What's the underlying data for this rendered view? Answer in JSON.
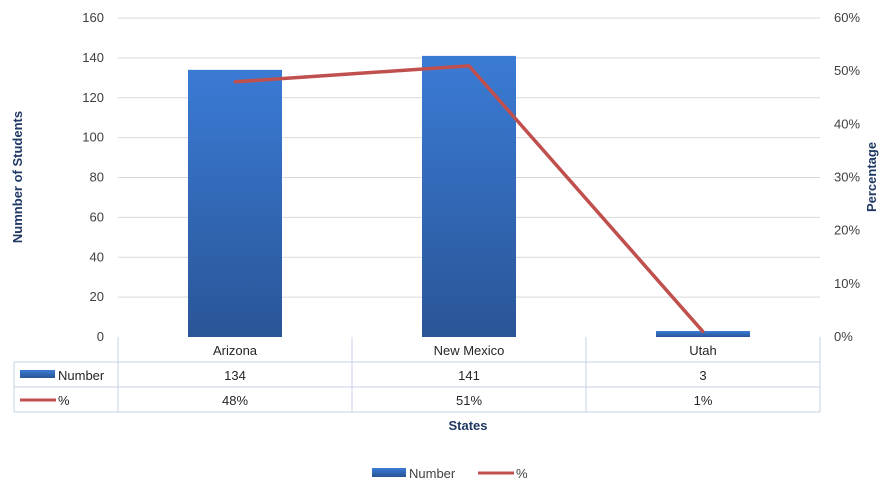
{
  "chart_data": {
    "type": "bar",
    "categories": [
      "Arizona",
      "New Mexico",
      "Utah"
    ],
    "series": [
      {
        "name": "Number",
        "type": "bar",
        "values": [
          134,
          141,
          3
        ],
        "color": "#3572c6",
        "axis": "left"
      },
      {
        "name": "%",
        "type": "line",
        "values": [
          48,
          51,
          1
        ],
        "color": "#c0504d",
        "axis": "right"
      }
    ],
    "xlabel": "States",
    "ylabel": "Numnber of Students",
    "y2label": "Percentage",
    "ylim": [
      0,
      160
    ],
    "y_ticks": [
      "0",
      "20",
      "40",
      "60",
      "80",
      "100",
      "120",
      "140",
      "160"
    ],
    "y2lim": [
      0,
      60
    ],
    "y2_ticks": [
      "0%",
      "10%",
      "20%",
      "30%",
      "40%",
      "50%",
      "60%"
    ],
    "data_table": {
      "rows": [
        {
          "label": "Number",
          "cells": [
            "134",
            "141",
            "3"
          ]
        },
        {
          "label": "%",
          "cells": [
            "48%",
            "51%",
            "1%"
          ]
        }
      ]
    },
    "legend": [
      "Number",
      "%"
    ],
    "legend_position": "bottom",
    "grid": true
  }
}
